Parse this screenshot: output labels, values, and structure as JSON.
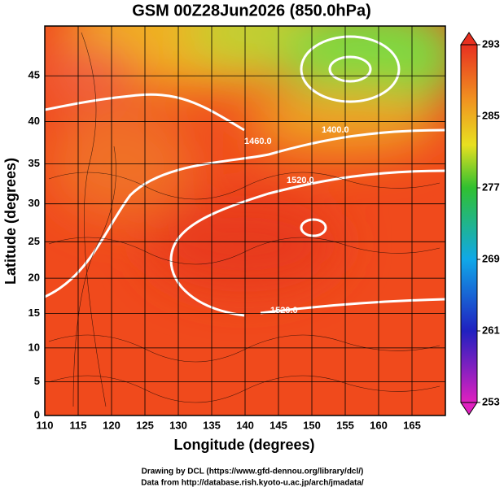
{
  "title": "GSM 00Z28Jun2026 (850.0hPa)",
  "map": {
    "projection": "mercator",
    "xlabel": "Longitude (degrees)",
    "ylabel": "Latitude  (degrees)",
    "xlim": [
      110,
      170
    ],
    "ylim": [
      0,
      50
    ],
    "xticks": [
      110,
      115,
      120,
      125,
      130,
      135,
      140,
      145,
      150,
      155,
      160,
      165
    ],
    "yticks": [
      0,
      5,
      10,
      15,
      20,
      25,
      30,
      35,
      40,
      45
    ],
    "grid": true
  },
  "colorbar": {
    "lim": [
      253,
      293
    ],
    "ticks": [
      253,
      261,
      269,
      277,
      285,
      293
    ]
  },
  "contour_labels": [
    "1460.0",
    "1520.0",
    "1400.0",
    "1520.0"
  ],
  "credits": [
    "Drawing by DCL (https://www.gfd-dennou.org/library/dcl/)",
    "Data from http://database.rish.kyoto-u.ac.jp/arch/jmadata/"
  ]
}
